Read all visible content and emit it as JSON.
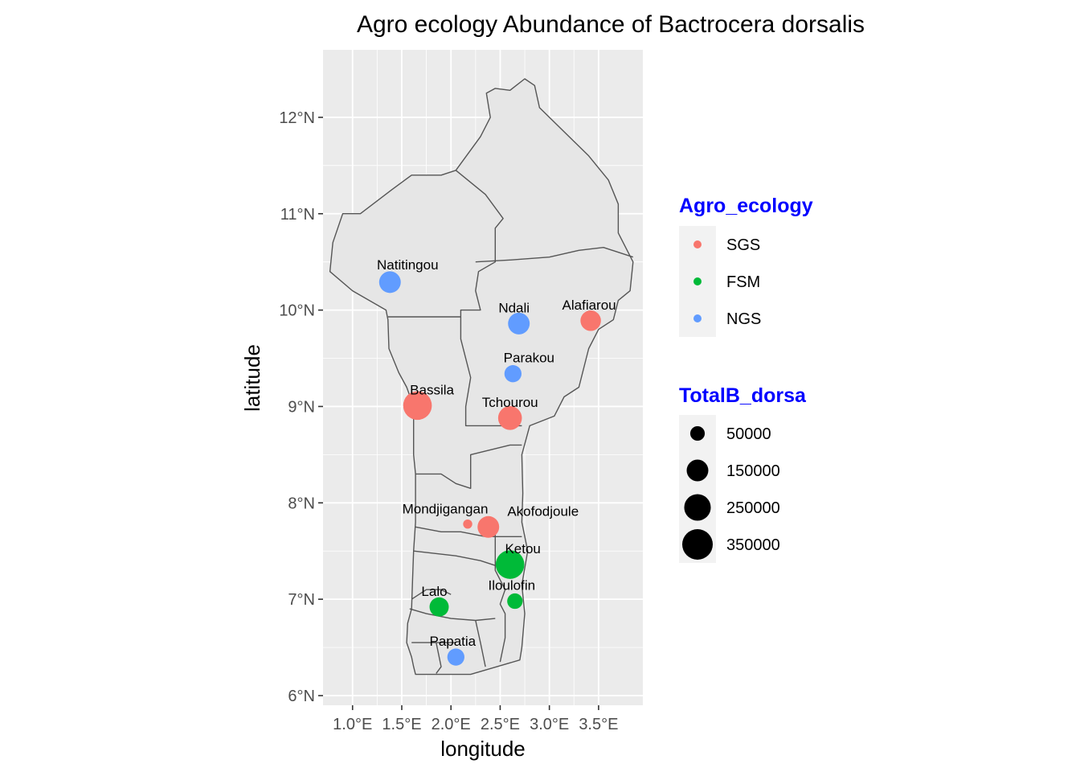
{
  "chart_data": {
    "type": "map-bubble",
    "title": "Agro ecology Abundance of Bactrocera dorsalis",
    "xlabel": "longitude",
    "ylabel": "latitude",
    "xlim": [
      0.7,
      3.95
    ],
    "ylim": [
      5.9,
      12.7
    ],
    "x_ticks": [
      {
        "value": 1.0,
        "label": "1.0°E"
      },
      {
        "value": 1.5,
        "label": "1.5°E"
      },
      {
        "value": 2.0,
        "label": "2.0°E"
      },
      {
        "value": 2.5,
        "label": "2.5°E"
      },
      {
        "value": 3.0,
        "label": "3.0°E"
      },
      {
        "value": 3.5,
        "label": "3.5°E"
      }
    ],
    "y_ticks": [
      {
        "value": 6,
        "label": "6°N"
      },
      {
        "value": 7,
        "label": "7°N"
      },
      {
        "value": 8,
        "label": "8°N"
      },
      {
        "value": 9,
        "label": "9°N"
      },
      {
        "value": 10,
        "label": "10°N"
      },
      {
        "value": 11,
        "label": "11°N"
      },
      {
        "value": 12,
        "label": "12°N"
      }
    ],
    "grid": true,
    "colors": {
      "SGS": "#F8766D",
      "FSM": "#00BA38",
      "NGS": "#619CFF"
    },
    "sites": [
      {
        "name": "Natitingou",
        "lon": 1.38,
        "lat": 10.29,
        "agro_ecology": "NGS",
        "total": 150000
      },
      {
        "name": "Ndali",
        "lon": 2.69,
        "lat": 9.86,
        "agro_ecology": "NGS",
        "total": 150000
      },
      {
        "name": "Alafiarou",
        "lon": 3.42,
        "lat": 9.89,
        "agro_ecology": "SGS",
        "total": 130000
      },
      {
        "name": "Parakou",
        "lon": 2.63,
        "lat": 9.34,
        "agro_ecology": "NGS",
        "total": 80000
      },
      {
        "name": "Bassila",
        "lon": 1.66,
        "lat": 9.01,
        "agro_ecology": "SGS",
        "total": 300000
      },
      {
        "name": "Tchourou",
        "lon": 2.6,
        "lat": 8.88,
        "agro_ecology": "SGS",
        "total": 190000
      },
      {
        "name": "Mondjigangan",
        "lon": 2.17,
        "lat": 7.78,
        "agro_ecology": "SGS",
        "total": 10000
      },
      {
        "name": "Akofodjoule",
        "lon": 2.38,
        "lat": 7.75,
        "agro_ecology": "SGS",
        "total": 150000
      },
      {
        "name": "Ketou",
        "lon": 2.6,
        "lat": 7.36,
        "agro_ecology": "FSM",
        "total": 300000
      },
      {
        "name": "Lalo",
        "lon": 1.88,
        "lat": 6.92,
        "agro_ecology": "FSM",
        "total": 110000
      },
      {
        "name": "Iloulofin",
        "lon": 2.65,
        "lat": 6.98,
        "agro_ecology": "FSM",
        "total": 60000
      },
      {
        "name": "Papatia",
        "lon": 2.05,
        "lat": 6.4,
        "agro_ecology": "NGS",
        "total": 80000
      }
    ],
    "legend": {
      "placement": "right",
      "color_title": "Agro_ecology",
      "color_items": [
        "SGS",
        "FSM",
        "NGS"
      ],
      "size_title": "TotalB_dorsa",
      "size_items": [
        {
          "label": "50000",
          "value": 50000
        },
        {
          "label": "150000",
          "value": 150000
        },
        {
          "label": "250000",
          "value": 250000
        },
        {
          "label": "350000",
          "value": 350000
        }
      ],
      "title_color": "#0000FF"
    },
    "boundary": {
      "outline": [
        [
          2.2,
          6.22
        ],
        [
          1.64,
          6.22
        ],
        [
          1.62,
          6.3
        ],
        [
          1.6,
          6.4
        ],
        [
          1.55,
          6.55
        ],
        [
          1.56,
          6.75
        ],
        [
          1.6,
          6.9
        ],
        [
          1.61,
          7.2
        ],
        [
          1.62,
          7.5
        ],
        [
          1.64,
          7.8
        ],
        [
          1.64,
          8.1
        ],
        [
          1.64,
          8.3
        ],
        [
          1.62,
          8.5
        ],
        [
          1.62,
          9.0
        ],
        [
          1.55,
          9.2
        ],
        [
          1.47,
          9.35
        ],
        [
          1.37,
          9.6
        ],
        [
          1.36,
          9.9
        ],
        [
          1.34,
          10.0
        ],
        [
          1.0,
          10.2
        ],
        [
          0.77,
          10.4
        ],
        [
          0.8,
          10.7
        ],
        [
          0.9,
          11.0
        ],
        [
          1.08,
          11.0
        ],
        [
          1.4,
          11.25
        ],
        [
          1.6,
          11.4
        ],
        [
          1.9,
          11.4
        ],
        [
          2.05,
          11.45
        ],
        [
          2.3,
          11.8
        ],
        [
          2.4,
          12.0
        ],
        [
          2.36,
          12.25
        ],
        [
          2.45,
          12.3
        ],
        [
          2.6,
          12.28
        ],
        [
          2.75,
          12.4
        ],
        [
          2.85,
          12.33
        ],
        [
          2.9,
          12.1
        ],
        [
          3.1,
          11.9
        ],
        [
          3.4,
          11.6
        ],
        [
          3.6,
          11.35
        ],
        [
          3.7,
          11.1
        ],
        [
          3.7,
          10.8
        ],
        [
          3.85,
          10.5
        ],
        [
          3.82,
          10.2
        ],
        [
          3.7,
          10.1
        ],
        [
          3.65,
          9.9
        ],
        [
          3.5,
          9.8
        ],
        [
          3.4,
          9.6
        ],
        [
          3.3,
          9.2
        ],
        [
          3.15,
          9.1
        ],
        [
          3.05,
          8.9
        ],
        [
          2.8,
          8.8
        ],
        [
          2.72,
          8.5
        ],
        [
          2.73,
          8.1
        ],
        [
          2.72,
          7.8
        ],
        [
          2.78,
          7.5
        ],
        [
          2.72,
          7.15
        ],
        [
          2.75,
          6.85
        ],
        [
          2.72,
          6.5
        ],
        [
          2.7,
          6.37
        ],
        [
          2.2,
          6.22
        ]
      ],
      "internal": [
        [
          [
            2.05,
            11.45
          ],
          [
            2.35,
            11.2
          ],
          [
            2.53,
            10.95
          ],
          [
            2.45,
            10.85
          ],
          [
            2.45,
            10.5
          ],
          [
            2.28,
            10.4
          ],
          [
            2.25,
            10.2
          ],
          [
            2.3,
            10.0
          ],
          [
            2.1,
            10.0
          ],
          [
            2.1,
            9.7
          ],
          [
            2.2,
            9.3
          ],
          [
            2.15,
            9.0
          ],
          [
            2.15,
            8.8
          ],
          [
            2.4,
            8.8
          ],
          [
            2.72,
            8.8
          ]
        ],
        [
          [
            2.25,
            10.5
          ],
          [
            2.6,
            10.52
          ],
          [
            3.0,
            10.55
          ],
          [
            3.3,
            10.62
          ],
          [
            3.55,
            10.65
          ],
          [
            3.85,
            10.55
          ]
        ],
        [
          [
            1.36,
            9.93
          ],
          [
            1.7,
            9.93
          ],
          [
            2.1,
            9.93
          ]
        ],
        [
          [
            1.64,
            8.3
          ],
          [
            1.9,
            8.3
          ],
          [
            2.05,
            8.2
          ],
          [
            2.2,
            8.15
          ],
          [
            2.2,
            8.5
          ],
          [
            2.4,
            8.55
          ],
          [
            2.6,
            8.6
          ],
          [
            2.72,
            8.6
          ]
        ],
        [
          [
            1.64,
            7.75
          ],
          [
            1.9,
            7.7
          ],
          [
            2.1,
            7.7
          ],
          [
            2.35,
            7.65
          ],
          [
            2.72,
            7.65
          ]
        ],
        [
          [
            1.62,
            7.5
          ],
          [
            2.05,
            7.45
          ],
          [
            2.3,
            7.4
          ],
          [
            2.45,
            7.35
          ]
        ],
        [
          [
            2.45,
            7.7
          ],
          [
            2.45,
            7.3
          ],
          [
            2.55,
            7.1
          ],
          [
            2.5,
            6.95
          ],
          [
            2.55,
            6.85
          ],
          [
            2.55,
            6.6
          ],
          [
            2.5,
            6.35
          ]
        ],
        [
          [
            1.6,
            7.0
          ],
          [
            1.75,
            7.1
          ],
          [
            1.9,
            7.1
          ],
          [
            2.0,
            7.05
          ]
        ],
        [
          [
            1.58,
            6.9
          ],
          [
            1.75,
            6.85
          ],
          [
            2.0,
            6.8
          ],
          [
            2.25,
            6.78
          ],
          [
            2.45,
            6.8
          ]
        ],
        [
          [
            1.6,
            6.55
          ],
          [
            1.85,
            6.55
          ],
          [
            2.05,
            6.55
          ]
        ],
        [
          [
            2.25,
            6.78
          ],
          [
            2.3,
            6.55
          ],
          [
            2.35,
            6.3
          ]
        ],
        [
          [
            1.85,
            6.55
          ],
          [
            1.9,
            6.3
          ],
          [
            1.85,
            6.23
          ]
        ]
      ]
    }
  }
}
